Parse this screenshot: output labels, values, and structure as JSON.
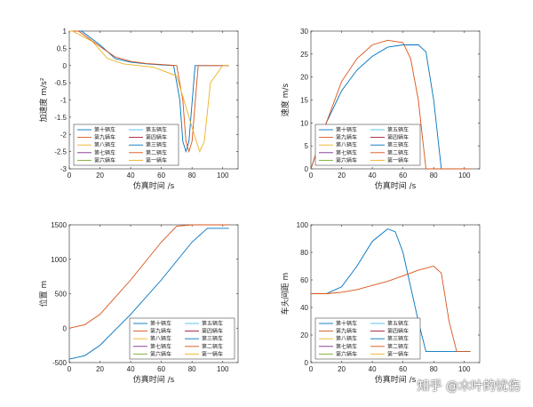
{
  "watermark": "知乎 @木叶的忧伤",
  "colors": [
    "#0072bd",
    "#d95319",
    "#edb120",
    "#7e2f8e",
    "#77ac30",
    "#4dbeee",
    "#a2142f",
    "#0072bd",
    "#d95319",
    "#edb120"
  ],
  "legend_left": [
    "第十辆车",
    "第九辆车",
    "第八辆车",
    "第七辆车",
    "第六辆车"
  ],
  "legend_right": [
    "第五辆车",
    "第四辆车",
    "第三辆车",
    "第二辆车",
    "第一辆车"
  ],
  "chart_data": [
    {
      "type": "line",
      "ylabel": "加速度 m/s²",
      "xlabel": "仿真时间 /s",
      "xlim": [
        0,
        110
      ],
      "ylim": [
        -3,
        1
      ],
      "xticks": [
        0,
        20,
        40,
        60,
        80,
        100
      ],
      "yticks": [
        -3,
        -2.5,
        -2,
        -1.5,
        -1,
        -0.5,
        0,
        0.5,
        1
      ],
      "legend_placement": "bottom-left",
      "series": [
        {
          "name": "第十辆车",
          "x": [
            0,
            8,
            20,
            30,
            40,
            50,
            60,
            68,
            72,
            74,
            76,
            78,
            82,
            100,
            104
          ],
          "y": [
            1,
            1,
            0.6,
            0.2,
            0.1,
            0.05,
            0.02,
            0,
            -1,
            -2.2,
            -2.5,
            -2.2,
            0,
            0,
            0
          ]
        },
        {
          "name": "第九辆车",
          "x": [
            0,
            6,
            20,
            30,
            40,
            50,
            60,
            70,
            74,
            76,
            78,
            80,
            84,
            100,
            104
          ],
          "y": [
            1,
            1,
            0.55,
            0.25,
            0.12,
            0.06,
            0.03,
            0,
            -1,
            -2.2,
            -2.5,
            -2.2,
            0,
            0,
            0
          ]
        },
        {
          "name": "第一辆车",
          "x": [
            0,
            2,
            15,
            25,
            35,
            45,
            55,
            70,
            80,
            85,
            88,
            92,
            100,
            104
          ],
          "y": [
            1,
            1,
            0.7,
            0.2,
            0.05,
            0,
            -0.05,
            -0.3,
            -1.8,
            -2.5,
            -2.2,
            -0.5,
            0,
            0
          ]
        }
      ]
    },
    {
      "type": "line",
      "ylabel": "速度 m/s",
      "xlabel": "仿真时间 /s",
      "xlim": [
        0,
        110
      ],
      "ylim": [
        0,
        30
      ],
      "xticks": [
        0,
        20,
        40,
        60,
        80,
        100
      ],
      "yticks": [
        0,
        5,
        10,
        15,
        20,
        25,
        30
      ],
      "legend_placement": "bottom-left",
      "series": [
        {
          "name": "第十辆车",
          "x": [
            0,
            10,
            20,
            30,
            40,
            50,
            60,
            70,
            75,
            80,
            85,
            104
          ],
          "y": [
            0,
            10,
            17,
            21.5,
            24.5,
            26.5,
            27,
            27,
            25.5,
            15,
            0,
            0
          ]
        },
        {
          "name": "第一辆车",
          "x": [
            0,
            10,
            20,
            30,
            40,
            50,
            60,
            65,
            70,
            75,
            104
          ],
          "y": [
            0,
            10,
            19,
            24,
            27,
            28,
            27.5,
            24,
            15,
            0,
            0
          ]
        }
      ]
    },
    {
      "type": "line",
      "ylabel": "位置 m",
      "xlabel": "仿真时间 /s",
      "xlim": [
        0,
        110
      ],
      "ylim": [
        -500,
        1500
      ],
      "xticks": [
        0,
        20,
        40,
        60,
        80,
        100
      ],
      "yticks": [
        -500,
        0,
        500,
        1000,
        1500
      ],
      "legend_placement": "bottom-right",
      "series": [
        {
          "name": "第十辆车",
          "x": [
            0,
            10,
            20,
            40,
            60,
            80,
            90,
            104
          ],
          "y": [
            -450,
            -400,
            -250,
            200,
            700,
            1250,
            1450,
            1450
          ]
        },
        {
          "name": "第一辆车",
          "x": [
            0,
            10,
            20,
            40,
            60,
            70,
            80,
            104
          ],
          "y": [
            0,
            50,
            200,
            700,
            1250,
            1480,
            1500,
            1500
          ]
        }
      ]
    },
    {
      "type": "line",
      "ylabel": "车头间距 m",
      "xlabel": "仿真时间 /s",
      "xlim": [
        0,
        110
      ],
      "ylim": [
        0,
        100
      ],
      "xticks": [
        0,
        20,
        40,
        60,
        80,
        100
      ],
      "yticks": [
        0,
        20,
        40,
        60,
        80,
        100
      ],
      "legend_placement": "bottom-left",
      "series": [
        {
          "name": "第二辆车",
          "x": [
            0,
            10,
            20,
            30,
            40,
            50,
            55,
            60,
            70,
            75,
            104
          ],
          "y": [
            50,
            50,
            55,
            70,
            88,
            97,
            95,
            80,
            30,
            8,
            8
          ]
        },
        {
          "name": "第十辆车",
          "x": [
            0,
            10,
            20,
            30,
            40,
            50,
            60,
            70,
            80,
            85,
            90,
            95,
            104
          ],
          "y": [
            50,
            50,
            51,
            53,
            56,
            59,
            63,
            67,
            70,
            65,
            30,
            8,
            8
          ]
        }
      ]
    }
  ]
}
